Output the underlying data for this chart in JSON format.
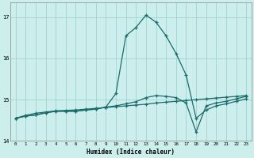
{
  "xlabel": "Humidex (Indice chaleur)",
  "bg_color": "#cceeed",
  "line_color": "#1a6b6b",
  "grid_color": "#99cccc",
  "xlim": [
    -0.5,
    23.5
  ],
  "ylim": [
    14.0,
    17.35
  ],
  "yticks": [
    14,
    15,
    16,
    17
  ],
  "ytick_labels": [
    "14",
    "15",
    "16",
    "17"
  ],
  "xticks": [
    0,
    1,
    2,
    3,
    4,
    5,
    6,
    7,
    8,
    9,
    10,
    11,
    12,
    13,
    14,
    15,
    16,
    17,
    18,
    19,
    20,
    21,
    22,
    23
  ],
  "line1_x": [
    0,
    1,
    2,
    3,
    4,
    5,
    6,
    7,
    8,
    9,
    10,
    11,
    12,
    13,
    14,
    15,
    16,
    17,
    18,
    19,
    20,
    21,
    22,
    23
  ],
  "line1_y": [
    14.55,
    14.62,
    14.67,
    14.7,
    14.73,
    14.74,
    14.75,
    14.77,
    14.79,
    14.81,
    14.83,
    14.85,
    14.87,
    14.89,
    14.92,
    14.94,
    14.96,
    14.98,
    15.0,
    15.02,
    15.04,
    15.06,
    15.08,
    15.1
  ],
  "line2_x": [
    0,
    1,
    2,
    3,
    4,
    5,
    6,
    7,
    8,
    9,
    10,
    11,
    12,
    13,
    14,
    15,
    16,
    17,
    18,
    19,
    20,
    21,
    22,
    23
  ],
  "line2_y": [
    14.55,
    14.6,
    14.63,
    14.68,
    14.72,
    14.72,
    14.72,
    14.75,
    14.77,
    14.82,
    15.15,
    16.55,
    16.75,
    17.05,
    16.88,
    16.55,
    16.12,
    15.6,
    14.55,
    14.75,
    14.85,
    14.9,
    14.96,
    15.02
  ],
  "line3_x": [
    0,
    1,
    2,
    3,
    4,
    5,
    6,
    7,
    8,
    9,
    10,
    11,
    12,
    13,
    14,
    15,
    16,
    17,
    18,
    19,
    20,
    21,
    22,
    23
  ],
  "line3_y": [
    14.55,
    14.6,
    14.63,
    14.68,
    14.72,
    14.72,
    14.72,
    14.75,
    14.77,
    14.82,
    14.85,
    14.9,
    14.95,
    15.05,
    15.1,
    15.08,
    15.05,
    14.92,
    14.22,
    14.85,
    14.92,
    14.96,
    15.02,
    15.08
  ]
}
